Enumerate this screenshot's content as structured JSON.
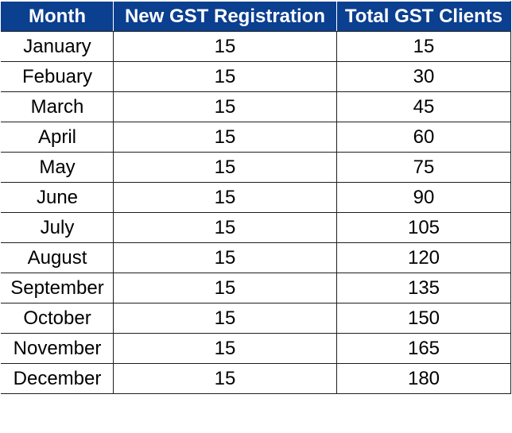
{
  "table": {
    "headers": [
      "Month",
      "New GST Registration",
      "Total GST Clients"
    ],
    "rows": [
      [
        "January",
        "15",
        "15"
      ],
      [
        "Febuary",
        "15",
        "30"
      ],
      [
        "March",
        "15",
        "45"
      ],
      [
        "April",
        "15",
        "60"
      ],
      [
        "May",
        "15",
        "75"
      ],
      [
        "June",
        "15",
        "90"
      ],
      [
        "July",
        "15",
        "105"
      ],
      [
        "August",
        "15",
        "120"
      ],
      [
        "September",
        "15",
        "135"
      ],
      [
        "October",
        "15",
        "150"
      ],
      [
        "November",
        "15",
        "165"
      ],
      [
        "December",
        "15",
        "180"
      ]
    ]
  },
  "colors": {
    "header_background": "#0b3f8f",
    "header_text": "#ffffff",
    "cell_text": "#000000",
    "grid_line": "#1e1e1e"
  }
}
